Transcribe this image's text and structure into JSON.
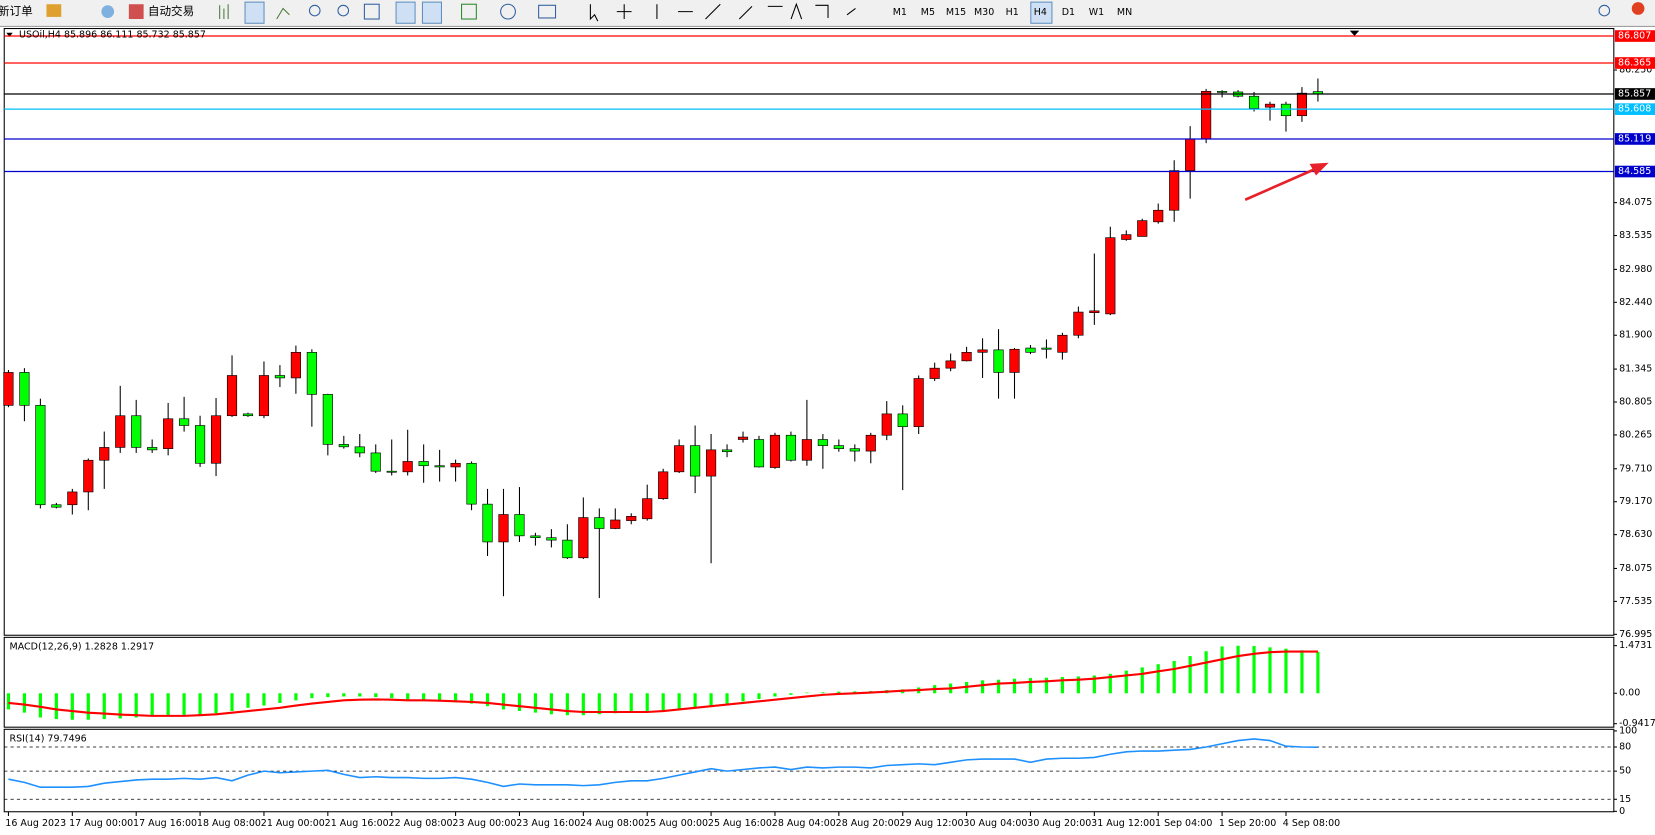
{
  "toolbar": {
    "new_order": "新订单",
    "auto_trading": "自动交易",
    "timeframes": [
      "M1",
      "M5",
      "M15",
      "M30",
      "H1",
      "H4",
      "D1",
      "W1",
      "MN"
    ]
  },
  "chart_data": [
    {
      "type": "candlestick",
      "title": "USOil,H4 85.896 86.111 85.732 85.857",
      "categories": [
        "16 Aug 2023",
        null,
        null,
        null,
        "17 Aug 00:00",
        null,
        null,
        null,
        "17 Aug 16:00",
        null,
        null,
        null,
        "18 Aug 08:00",
        null,
        null,
        null,
        "21 Aug 00:00",
        null,
        null,
        null,
        "21 Aug 16:00",
        null,
        null,
        null,
        "22 Aug 08:00",
        null,
        null,
        null,
        "23 Aug 00:00",
        null,
        null,
        null,
        "23 Aug 16:00",
        null,
        null,
        null,
        "24 Aug 08:00",
        null,
        null,
        null,
        "25 Aug 00:00",
        null,
        null,
        null,
        "25 Aug 16:00",
        null,
        null,
        null,
        "28 Aug 04:00",
        null,
        null,
        null,
        "28 Aug 20:00",
        null,
        null,
        null,
        "29 Aug 12:00",
        null,
        null,
        null,
        "30 Aug 04:00",
        null,
        null,
        null,
        "30 Aug 20:00",
        null,
        null,
        null,
        "31 Aug 12:00",
        null,
        null,
        null,
        "1 Sep 04:00",
        null,
        null,
        null,
        "1 Sep 20:00",
        null,
        null,
        null,
        "4 Sep 08:00",
        null,
        null
      ],
      "open": [
        80.75,
        81.29,
        80.75,
        79.12,
        79.12,
        79.33,
        79.85,
        80.06,
        80.58,
        80.06,
        80.04,
        80.53,
        80.42,
        79.8,
        80.58,
        80.61,
        80.58,
        81.24,
        81.2,
        81.62,
        80.93,
        80.11,
        80.07,
        79.97,
        79.67,
        79.66,
        79.83,
        79.76,
        79.74,
        79.8,
        79.13,
        78.51,
        78.96,
        78.61,
        78.58,
        78.54,
        78.25,
        78.91,
        78.73,
        78.86,
        78.89,
        79.22,
        79.66,
        80.09,
        79.59,
        80.02,
        80.19,
        80.19,
        79.73,
        80.26,
        79.85,
        80.19,
        80.09,
        80.04,
        80.0,
        80.26,
        80.61,
        80.4,
        81.19,
        81.36,
        81.48,
        81.62,
        81.66,
        81.29,
        81.69,
        81.69,
        81.62,
        81.9,
        82.27,
        82.25,
        83.47,
        83.52,
        83.76,
        83.95,
        84.6,
        85.12,
        85.9,
        85.89,
        85.82,
        85.64,
        85.69,
        85.5,
        85.896
      ],
      "high": [
        81.33,
        81.36,
        80.86,
        79.15,
        79.38,
        79.88,
        80.32,
        81.07,
        80.84,
        80.19,
        80.79,
        80.89,
        80.58,
        80.87,
        81.57,
        80.63,
        81.47,
        81.41,
        81.73,
        81.67,
        80.94,
        80.25,
        80.28,
        80.11,
        80.19,
        80.35,
        80.11,
        80.02,
        79.86,
        79.83,
        79.38,
        79.38,
        79.41,
        78.66,
        78.72,
        78.8,
        79.24,
        79.06,
        79.06,
        78.98,
        79.45,
        79.71,
        80.19,
        80.42,
        80.28,
        80.11,
        80.32,
        80.25,
        80.3,
        80.32,
        80.84,
        80.28,
        80.19,
        80.11,
        80.3,
        80.82,
        80.75,
        81.24,
        81.45,
        81.6,
        81.71,
        81.85,
        82.0,
        81.69,
        81.74,
        81.83,
        81.94,
        82.37,
        83.24,
        83.68,
        83.62,
        83.81,
        84.06,
        84.77,
        85.33,
        85.94,
        85.92,
        85.92,
        85.89,
        85.73,
        85.73,
        85.97,
        86.111
      ],
      "low": [
        80.72,
        80.49,
        79.06,
        79.06,
        78.96,
        79.03,
        79.38,
        79.97,
        79.97,
        79.97,
        79.93,
        80.32,
        79.74,
        79.59,
        80.56,
        80.56,
        80.54,
        81.05,
        80.94,
        80.4,
        79.93,
        80.04,
        79.9,
        79.64,
        79.6,
        79.6,
        79.48,
        79.5,
        79.5,
        79.03,
        78.28,
        77.62,
        78.51,
        78.45,
        78.42,
        78.23,
        78.23,
        77.59,
        78.72,
        78.8,
        78.86,
        79.2,
        79.64,
        79.31,
        78.16,
        79.9,
        80.14,
        79.73,
        79.71,
        79.83,
        79.76,
        79.71,
        79.99,
        79.83,
        79.8,
        80.18,
        79.36,
        80.28,
        81.15,
        81.31,
        81.47,
        81.2,
        80.86,
        80.86,
        81.59,
        81.52,
        81.5,
        81.85,
        82.07,
        82.23,
        83.45,
        83.52,
        83.73,
        83.76,
        84.14,
        85.05,
        85.8,
        85.8,
        85.57,
        85.42,
        85.24,
        85.4,
        85.732
      ],
      "close": [
        81.29,
        80.75,
        79.12,
        79.08,
        79.33,
        79.85,
        80.06,
        80.58,
        80.06,
        80.02,
        80.53,
        80.42,
        79.8,
        80.58,
        81.24,
        80.58,
        81.24,
        81.2,
        81.62,
        80.93,
        80.11,
        80.07,
        79.97,
        79.67,
        79.66,
        79.83,
        79.76,
        79.74,
        79.8,
        79.13,
        78.51,
        78.96,
        78.61,
        78.58,
        78.54,
        78.25,
        78.91,
        78.73,
        78.87,
        78.93,
        79.22,
        79.66,
        80.09,
        79.59,
        80.02,
        79.99,
        80.23,
        79.74,
        80.26,
        79.85,
        80.19,
        80.09,
        80.04,
        80.0,
        80.26,
        80.61,
        80.4,
        81.19,
        81.36,
        81.48,
        81.62,
        81.66,
        81.29,
        81.67,
        81.62,
        81.67,
        81.9,
        82.28,
        82.3,
        83.5,
        83.55,
        83.78,
        83.95,
        84.6,
        85.12,
        85.9,
        85.89,
        85.82,
        85.62,
        85.69,
        85.5,
        85.87,
        85.857
      ],
      "up_color": "#ff0000",
      "down_color": "#00ff00",
      "ylim": [
        76.98,
        86.93
      ],
      "yticks": [
        {
          "value": 86.25,
          "label": "86.250"
        },
        84.075,
        83.535,
        {
          "value": 82.98,
          "label": "82.980"
        },
        {
          "value": 82.44,
          "label": "82.440"
        },
        {
          "value": 81.9,
          "label": "81.900"
        },
        81.345,
        80.805,
        80.265,
        {
          "value": 79.71,
          "label": "79.710"
        },
        {
          "value": 79.17,
          "label": "79.170"
        },
        {
          "value": 78.63,
          "label": "78.630"
        },
        78.075,
        77.535,
        76.995
      ],
      "levels": [
        {
          "value": 86.807,
          "color": "#ff0000"
        },
        {
          "value": 86.365,
          "color": "#ff0000"
        },
        {
          "value": 85.857,
          "color": "#000000"
        },
        {
          "value": 85.608,
          "color": "#00bfff"
        },
        {
          "value": 85.119,
          "color": "#0000cd"
        },
        {
          "value": 84.585,
          "color": "#0000cd"
        }
      ]
    },
    {
      "type": "macd",
      "title": "MACD(12,26,9) 1.2828 1.2917",
      "ylim": [
        -1.05,
        1.73
      ],
      "yticks": [
        1.4731,
        {
          "value": 0,
          "label": "0.00"
        },
        -0.9417
      ],
      "series": [
        {
          "type": "bar",
          "color": "#00ff00",
          "values": [
            -0.5,
            -0.6,
            -0.75,
            -0.8,
            -0.82,
            -0.82,
            -0.8,
            -0.78,
            -0.75,
            -0.72,
            -0.7,
            -0.68,
            -0.66,
            -0.62,
            -0.55,
            -0.45,
            -0.38,
            -0.3,
            -0.22,
            -0.15,
            -0.12,
            -0.1,
            -0.1,
            -0.12,
            -0.15,
            -0.2,
            -0.22,
            -0.25,
            -0.28,
            -0.32,
            -0.4,
            -0.5,
            -0.55,
            -0.6,
            -0.65,
            -0.68,
            -0.68,
            -0.65,
            -0.62,
            -0.6,
            -0.58,
            -0.55,
            -0.5,
            -0.45,
            -0.4,
            -0.32,
            -0.25,
            -0.18,
            -0.1,
            -0.05,
            0.02,
            0.03,
            0.05,
            0.06,
            0.07,
            0.1,
            0.12,
            0.18,
            0.25,
            0.3,
            0.35,
            0.4,
            0.42,
            0.45,
            0.47,
            0.48,
            0.5,
            0.52,
            0.55,
            0.6,
            0.7,
            0.8,
            0.9,
            1.0,
            1.15,
            1.3,
            1.45,
            1.47,
            1.46,
            1.42,
            1.38,
            1.33,
            1.2828
          ]
        },
        {
          "type": "line",
          "color": "#ff0000",
          "values": [
            -0.3,
            -0.35,
            -0.42,
            -0.5,
            -0.55,
            -0.6,
            -0.63,
            -0.66,
            -0.68,
            -0.7,
            -0.7,
            -0.7,
            -0.68,
            -0.65,
            -0.6,
            -0.55,
            -0.5,
            -0.45,
            -0.38,
            -0.32,
            -0.27,
            -0.22,
            -0.2,
            -0.19,
            -0.2,
            -0.22,
            -0.22,
            -0.23,
            -0.25,
            -0.27,
            -0.3,
            -0.35,
            -0.4,
            -0.45,
            -0.5,
            -0.55,
            -0.58,
            -0.58,
            -0.58,
            -0.58,
            -0.58,
            -0.55,
            -0.5,
            -0.45,
            -0.4,
            -0.35,
            -0.3,
            -0.25,
            -0.2,
            -0.15,
            -0.1,
            -0.05,
            -0.02,
            0.0,
            0.02,
            0.05,
            0.08,
            0.1,
            0.13,
            0.15,
            0.2,
            0.25,
            0.3,
            0.32,
            0.35,
            0.37,
            0.4,
            0.42,
            0.45,
            0.5,
            0.55,
            0.6,
            0.68,
            0.75,
            0.85,
            0.95,
            1.05,
            1.15,
            1.22,
            1.27,
            1.29,
            1.29,
            1.2917
          ]
        }
      ]
    },
    {
      "type": "rsi",
      "title": "RSI(14) 79.7496",
      "ylim": [
        -0.5,
        102
      ],
      "yticks": [
        100,
        80,
        50,
        15,
        0
      ],
      "grid": "dashed",
      "series": [
        {
          "type": "line",
          "color": "#1e90ff",
          "values": [
            40,
            36,
            30,
            30,
            30,
            31,
            35,
            37,
            39,
            40,
            40,
            41,
            40,
            42,
            38,
            45,
            50,
            48,
            49,
            50,
            51,
            46,
            42,
            43,
            42,
            42,
            41,
            41,
            42,
            40,
            36,
            31,
            34,
            33,
            33,
            33,
            32,
            33,
            36,
            38,
            38,
            41,
            45,
            49,
            53,
            50,
            52,
            54,
            55,
            52,
            55,
            54,
            55,
            55,
            54,
            57,
            58,
            59,
            58,
            61,
            64,
            65,
            65,
            65,
            61,
            65,
            66,
            66,
            67,
            71,
            74,
            75,
            75,
            76,
            77,
            80,
            84,
            88,
            90,
            88,
            81,
            80,
            79.7496
          ]
        }
      ]
    }
  ]
}
